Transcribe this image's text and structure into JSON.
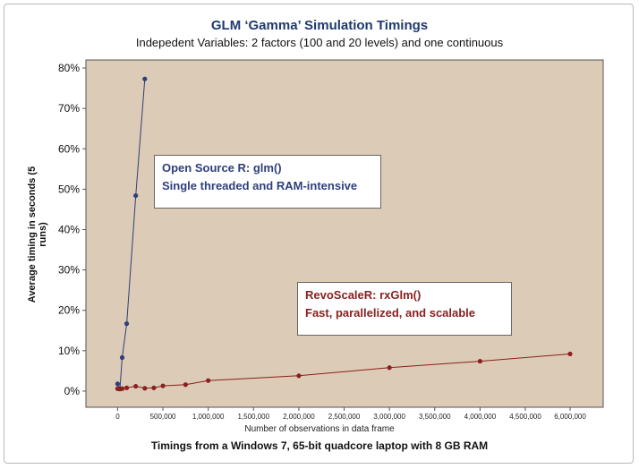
{
  "chart_data": {
    "type": "line",
    "title": "GLM ‘Gamma’ Simulation Timings",
    "subtitle": "Indepedent Variables: 2 factors (100 and 20 levels) and one continuous",
    "xlabel": "Number of observations in data frame",
    "ylabel": "Average timing in seconds (5 runs)",
    "footnote": "Timings from a Windows 7, 65-bit quadcore laptop with 8 GB RAM",
    "xlim": [
      -350000,
      6400000
    ],
    "ylim": [
      -0.04,
      0.82
    ],
    "grid": false,
    "background_color": "#dccbb6",
    "x_ticks": [
      {
        "value": 0,
        "label": "0"
      },
      {
        "value": 500000,
        "label": "500,000"
      },
      {
        "value": 1000000,
        "label": "1,000,000"
      },
      {
        "value": 1500000,
        "label": "1,500,000"
      },
      {
        "value": 2000000,
        "label": "2,000,000"
      },
      {
        "value": 2500000,
        "label": "2,500,000"
      },
      {
        "value": 3000000,
        "label": "3,000,000"
      },
      {
        "value": 3500000,
        "label": "3,500,000"
      },
      {
        "value": 4000000,
        "label": "4,000,000"
      },
      {
        "value": 4500000,
        "label": "4,500,000"
      },
      {
        "value": 6000000,
        "label": "6,000,000"
      }
    ],
    "y_ticks": [
      {
        "value": 0,
        "label": "0%"
      },
      {
        "value": 0.1,
        "label": "10%"
      },
      {
        "value": 0.2,
        "label": "20%"
      },
      {
        "value": 0.3,
        "label": "30%"
      },
      {
        "value": 0.4,
        "label": "40%"
      },
      {
        "value": 0.5,
        "label": "50%"
      },
      {
        "value": 0.6,
        "label": "60%"
      },
      {
        "value": 0.7,
        "label": "70%"
      },
      {
        "value": 0.8,
        "label": "80%"
      }
    ],
    "series": [
      {
        "color": "#2e3f7c",
        "points": [
          {
            "x": 0,
            "y": 0.018
          },
          {
            "x": 25000,
            "y": 0.006
          },
          {
            "x": 50000,
            "y": 0.083
          },
          {
            "x": 100000,
            "y": 0.167
          },
          {
            "x": 200000,
            "y": 0.484
          },
          {
            "x": 300000,
            "y": 0.773
          }
        ]
      },
      {
        "color": "#8a2020",
        "points": [
          {
            "x": 0,
            "y": 0.006
          },
          {
            "x": 25000,
            "y": 0.005
          },
          {
            "x": 50000,
            "y": 0.006
          },
          {
            "x": 100000,
            "y": 0.008
          },
          {
            "x": 200000,
            "y": 0.012
          },
          {
            "x": 300000,
            "y": 0.007
          },
          {
            "x": 400000,
            "y": 0.008
          },
          {
            "x": 500000,
            "y": 0.013
          },
          {
            "x": 750000,
            "y": 0.016
          },
          {
            "x": 1000000,
            "y": 0.026
          },
          {
            "x": 2000000,
            "y": 0.038
          },
          {
            "x": 3000000,
            "y": 0.058
          },
          {
            "x": 4000000,
            "y": 0.074
          },
          {
            "x": 6000000,
            "y": 0.092
          }
        ]
      }
    ],
    "annotations": [
      {
        "color": "#2e3f7c",
        "lines": [
          "Open Source R: glm()",
          "Single threaded and RAM-intensive"
        ]
      },
      {
        "color": "#8a2020",
        "lines": [
          "RevoScaleR: rxGlm()",
          "Fast, parallelized, and scalable"
        ]
      }
    ]
  }
}
